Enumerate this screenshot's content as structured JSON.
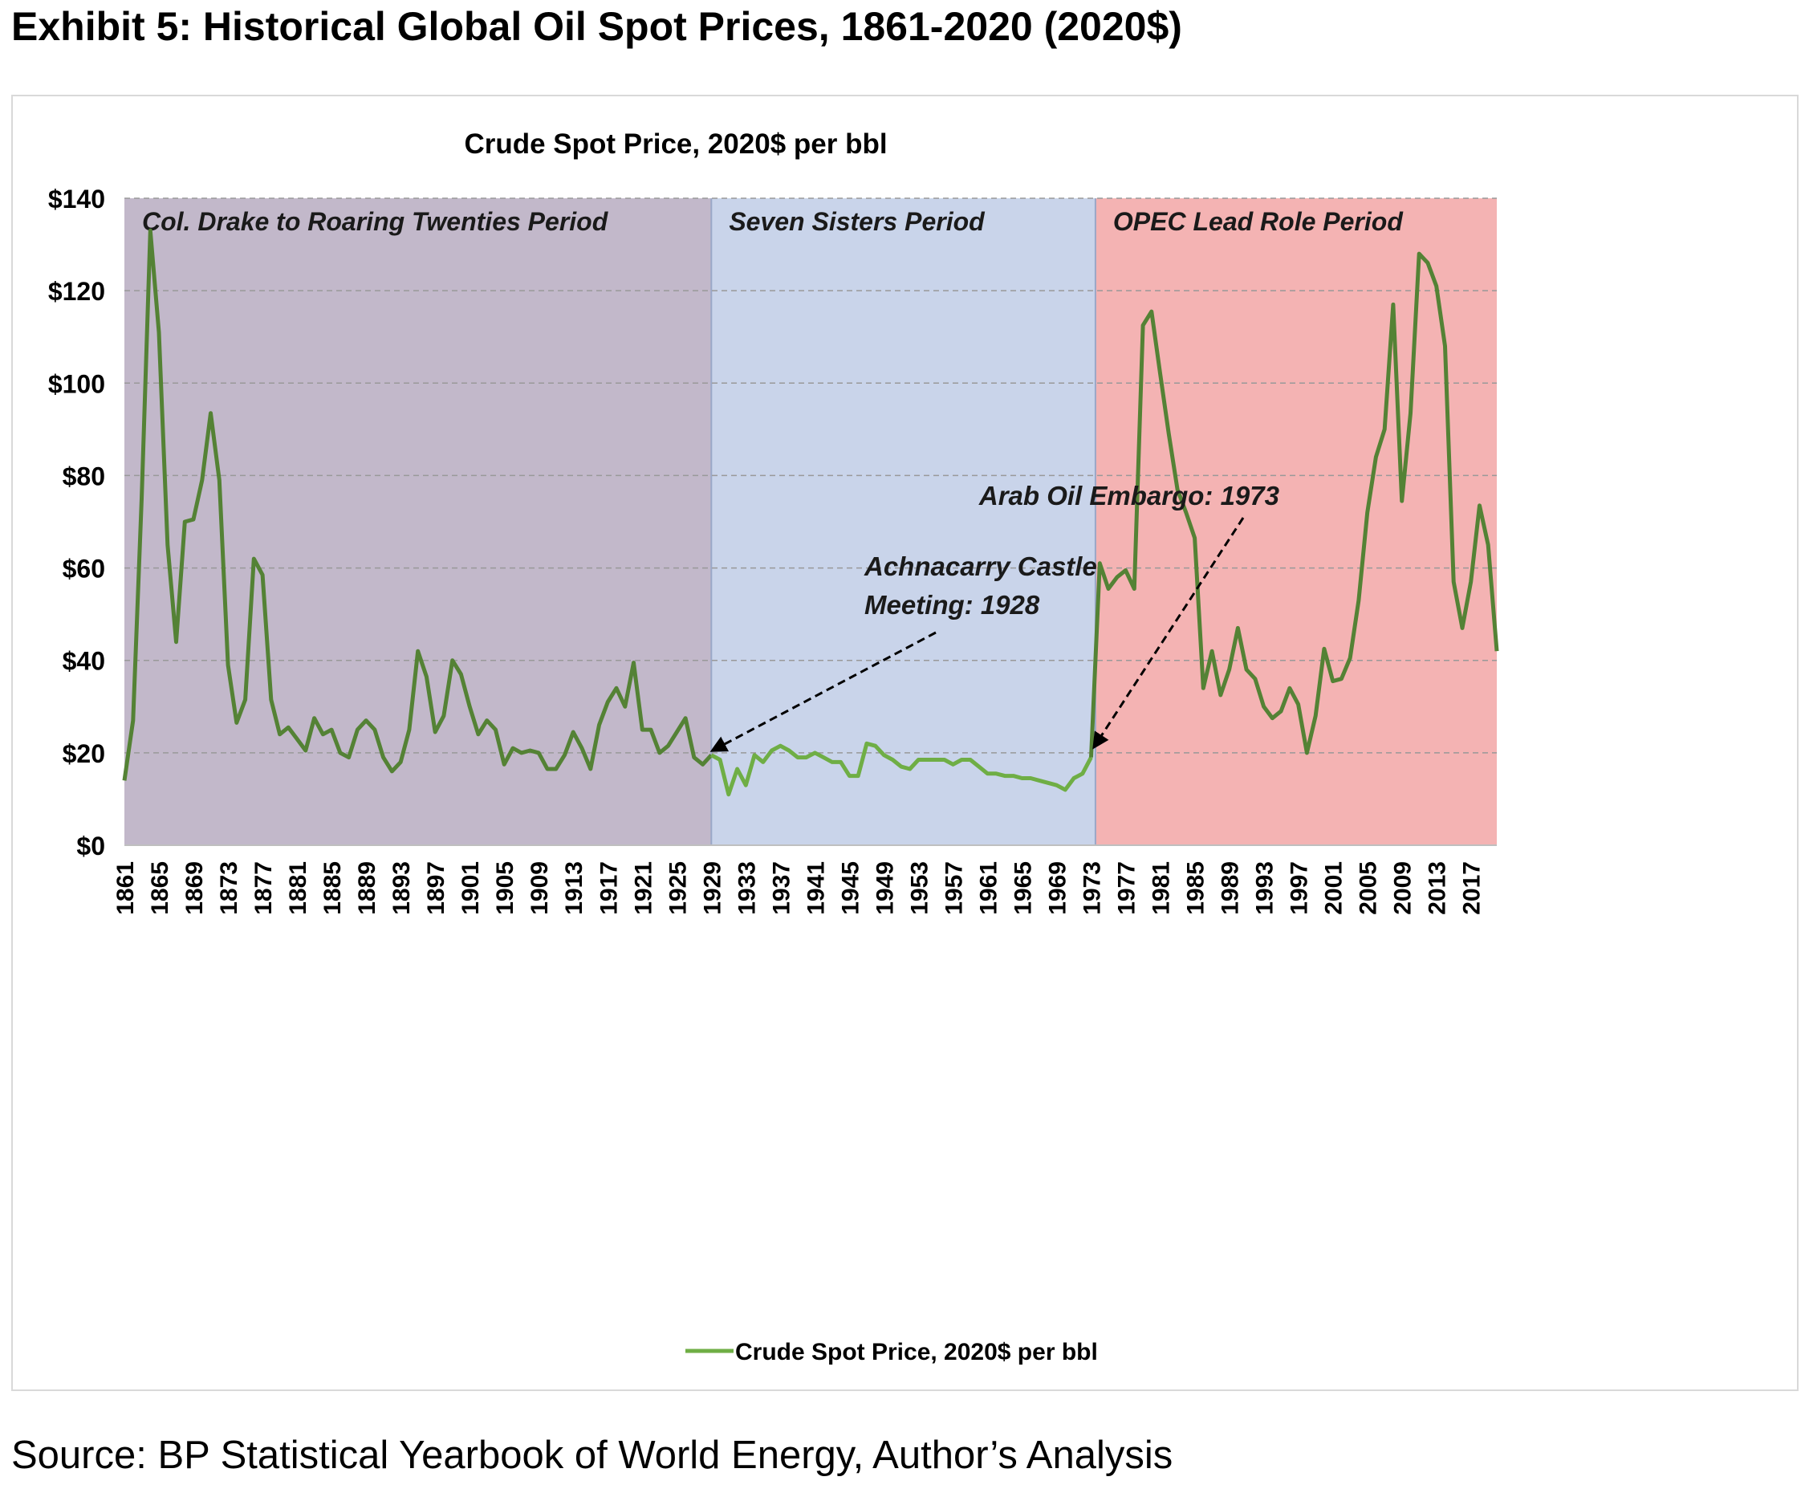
{
  "exhibit_title": "Exhibit 5: Historical Global Oil Spot Prices, 1861-2020 (2020$)",
  "source_note": "Source: BP Statistical Yearbook of World Energy, Author’s Analysis",
  "chart_data": {
    "type": "line",
    "title": "Crude Spot Price, 2020$ per bbl",
    "xlabel": "",
    "ylabel": "",
    "ylim": [
      0,
      140
    ],
    "xlim": [
      1861,
      2020
    ],
    "y_ticks": [
      0,
      20,
      40,
      60,
      80,
      100,
      120,
      140
    ],
    "y_tick_labels": [
      "$0",
      "$20",
      "$40",
      "$60",
      "$80",
      "$100",
      "$120",
      "$140"
    ],
    "x_tick_labels": [
      "1861",
      "1865",
      "1869",
      "1873",
      "1877",
      "1881",
      "1885",
      "1889",
      "1893",
      "1897",
      "1901",
      "1905",
      "1909",
      "1913",
      "1917",
      "1921",
      "1925",
      "1929",
      "1933",
      "1937",
      "1941",
      "1945",
      "1949",
      "1953",
      "1957",
      "1961",
      "1965",
      "1969",
      "1973",
      "1977",
      "1981",
      "1985",
      "1989",
      "1993",
      "1997",
      "2001",
      "2005",
      "2009",
      "2013",
      "2017"
    ],
    "grid": "horizontal dashed",
    "legend": {
      "position": "bottom",
      "label": "Crude Spot Price, 2020$ per bbl"
    },
    "periods": [
      {
        "label": "Col. Drake to Roaring Twenties Period",
        "start": 1861,
        "end": 1929,
        "color": "#c2b8ca"
      },
      {
        "label": "Seven Sisters Period",
        "start": 1929,
        "end": 1973.5,
        "color": "#c9d4ea"
      },
      {
        "label": "OPEC Lead Role Period",
        "start": 1973.5,
        "end": 2020,
        "color": "#f4b3b3"
      }
    ],
    "annotations": [
      {
        "line1": "Achnacarry Castle",
        "line2": "Meeting: 1928",
        "x": 1929,
        "y": 19.5
      },
      {
        "line1": "Arab Oil Embargo: 1973",
        "line2": "",
        "x": 1973,
        "y": 21
      }
    ],
    "colors": {
      "line_dark": "#548235",
      "line_light": "#6fae45"
    },
    "series": [
      {
        "name": "Crude Spot Price, 2020$ per bbl",
        "x": [
          1861,
          1862,
          1863,
          1864,
          1865,
          1866,
          1867,
          1868,
          1869,
          1870,
          1871,
          1872,
          1873,
          1874,
          1875,
          1876,
          1877,
          1878,
          1879,
          1880,
          1881,
          1882,
          1883,
          1884,
          1885,
          1886,
          1887,
          1888,
          1889,
          1890,
          1891,
          1892,
          1893,
          1894,
          1895,
          1896,
          1897,
          1898,
          1899,
          1900,
          1901,
          1902,
          1903,
          1904,
          1905,
          1906,
          1907,
          1908,
          1909,
          1910,
          1911,
          1912,
          1913,
          1914,
          1915,
          1916,
          1917,
          1918,
          1919,
          1920,
          1921,
          1922,
          1923,
          1924,
          1925,
          1926,
          1927,
          1928,
          1929,
          1930,
          1931,
          1932,
          1933,
          1934,
          1935,
          1936,
          1937,
          1938,
          1939,
          1940,
          1941,
          1942,
          1943,
          1944,
          1945,
          1946,
          1947,
          1948,
          1949,
          1950,
          1951,
          1952,
          1953,
          1954,
          1955,
          1956,
          1957,
          1958,
          1959,
          1960,
          1961,
          1962,
          1963,
          1964,
          1965,
          1966,
          1967,
          1968,
          1969,
          1970,
          1971,
          1972,
          1973,
          1974,
          1975,
          1976,
          1977,
          1978,
          1979,
          1980,
          1981,
          1982,
          1983,
          1984,
          1985,
          1986,
          1987,
          1988,
          1989,
          1990,
          1991,
          1992,
          1993,
          1994,
          1995,
          1996,
          1997,
          1998,
          1999,
          2000,
          2001,
          2002,
          2003,
          2004,
          2005,
          2006,
          2007,
          2008,
          2009,
          2010,
          2011,
          2012,
          2013,
          2014,
          2015,
          2016,
          2017,
          2018,
          2019,
          2020
        ],
        "values": [
          14,
          27,
          75,
          133,
          111,
          65,
          44,
          70,
          70.5,
          79,
          93.5,
          79,
          39,
          26.5,
          31.5,
          62,
          58.5,
          31.5,
          24,
          25.5,
          23,
          20.5,
          27.5,
          24,
          25,
          20,
          19,
          25,
          27,
          25,
          19,
          16,
          18,
          25,
          42,
          36.5,
          24.5,
          28,
          40,
          37,
          30,
          24,
          27,
          25,
          17.5,
          21,
          20,
          20.5,
          20,
          16.5,
          16.5,
          19.5,
          24.5,
          21,
          16.5,
          26,
          31,
          34,
          30,
          39.5,
          25,
          25,
          20,
          21.5,
          24.5,
          27.5,
          19,
          17.5,
          19.5,
          18.5,
          11,
          16.5,
          13,
          19.5,
          18,
          20.5,
          21.5,
          20.5,
          19,
          19,
          20,
          19,
          18,
          18,
          15,
          15,
          22,
          21.5,
          19.5,
          18.5,
          17,
          16.5,
          18.5,
          18.5,
          18.5,
          18.5,
          17.5,
          18.5,
          18.5,
          17,
          15.5,
          15.5,
          15,
          15,
          14.5,
          14.5,
          14,
          13.5,
          13,
          12,
          14.5,
          15.5,
          19,
          61,
          55.5,
          58,
          59.5,
          55.5,
          112.5,
          115.5,
          102,
          89,
          77,
          72,
          66.5,
          34,
          42,
          32.5,
          38,
          47,
          38,
          36,
          30,
          27.5,
          29,
          34,
          30.5,
          20,
          28,
          42.5,
          35.5,
          36,
          40.5,
          53,
          72,
          84,
          90,
          117,
          74.5,
          93.5,
          128,
          126,
          121,
          108,
          57,
          47,
          57,
          73.5,
          65,
          42
        ]
      }
    ]
  }
}
